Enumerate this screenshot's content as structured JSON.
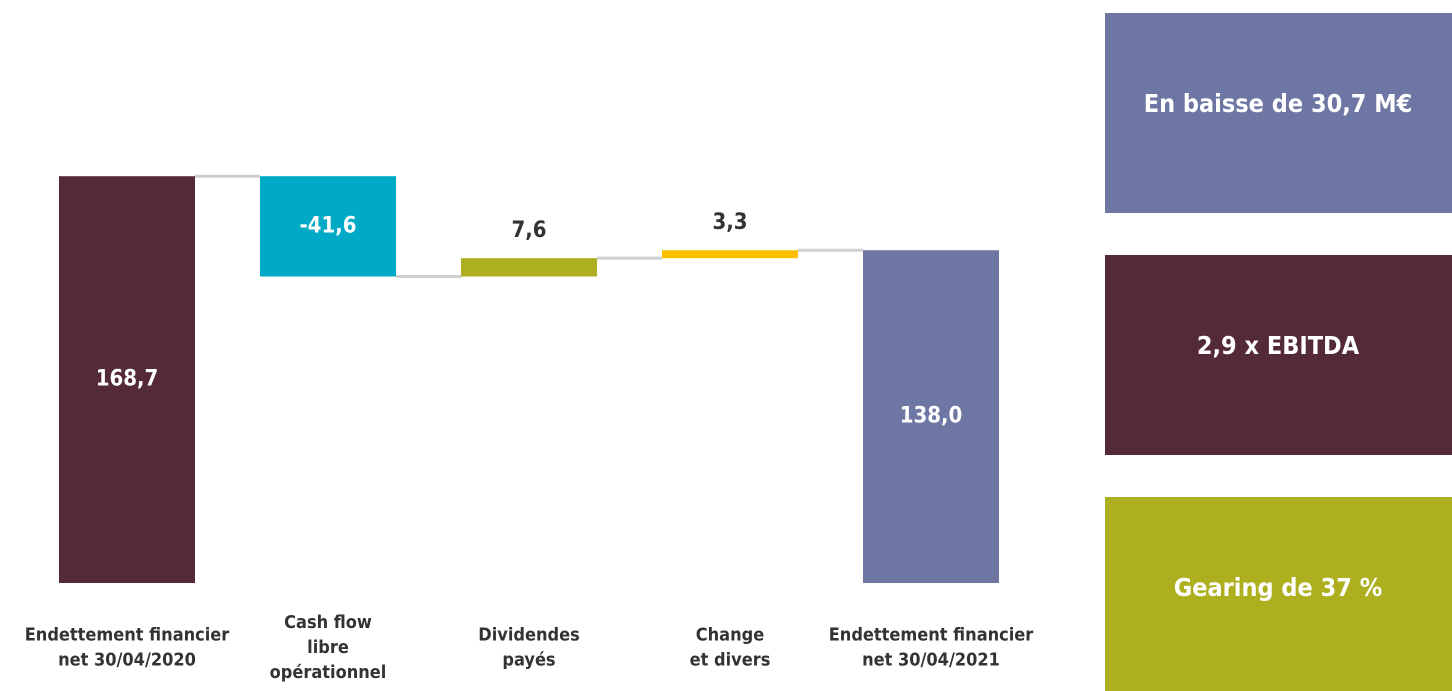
{
  "chart_data": {
    "type": "waterfall",
    "categories": [
      [
        "Endettement financier",
        "net 30/04/2020"
      ],
      [
        "Cash flow",
        "libre",
        "opérationnel"
      ],
      [
        "Dividendes",
        "payés"
      ],
      [
        "Change",
        "et divers"
      ],
      [
        "Endettement financier",
        "net 30/04/2021"
      ]
    ],
    "values": [
      168.7,
      -41.6,
      7.6,
      3.3,
      138.0
    ],
    "value_labels": [
      "168,7",
      "-41,6",
      "7,6",
      "3,3",
      "138,0"
    ],
    "measure": [
      "absolute",
      "relative",
      "relative",
      "relative",
      "total"
    ],
    "colors": [
      "#532a36",
      "#00aac6",
      "#aeaf1f",
      "#fcc000",
      "#6e77a3"
    ],
    "ylim": [
      0,
      175
    ],
    "annotations": [
      {
        "text": "En baisse de 30,7 M€",
        "color": "#6e77a3"
      },
      {
        "text": "2,9 x EBITDA",
        "color": "#532a36"
      },
      {
        "text": "Gearing de 37 %",
        "color": "#aeaf1f"
      }
    ]
  }
}
